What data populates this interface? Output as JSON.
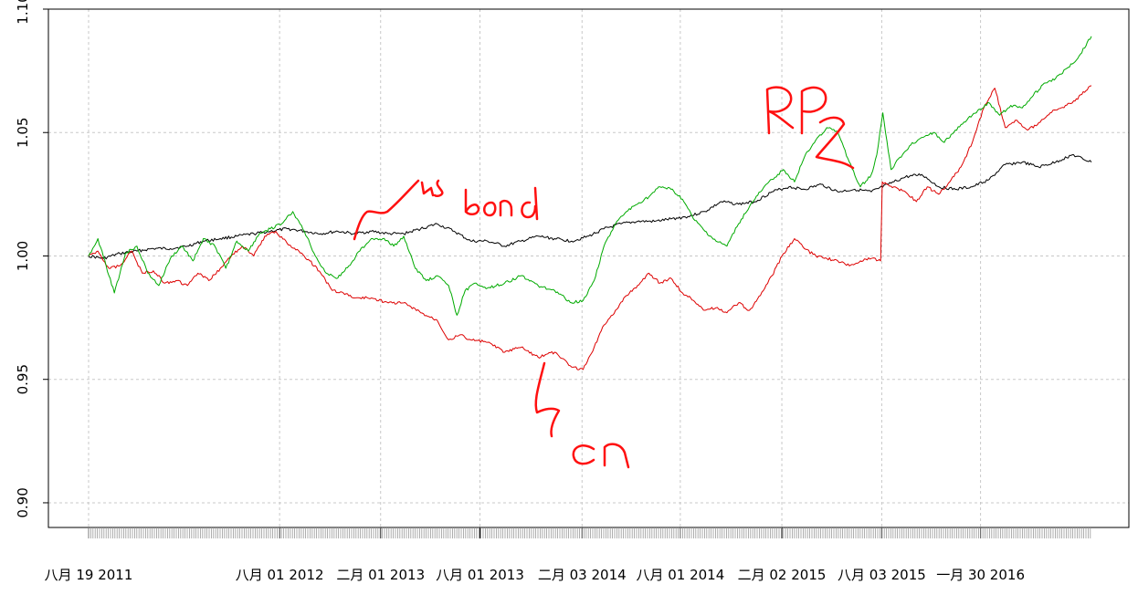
{
  "chart_data": {
    "type": "line",
    "title": "",
    "xlabel": "",
    "ylabel": "",
    "ylim": [
      0.89,
      1.1
    ],
    "grid": true,
    "y_ticks": [
      "0.90",
      "0.95",
      "1.00",
      "1.05",
      "1.10"
    ],
    "x_ticks": [
      {
        "label": "八月 19 2011",
        "date": "2011-08-19"
      },
      {
        "label": "八月 01 2012",
        "date": "2012-08-01"
      },
      {
        "label": "二月 01 2013",
        "date": "2013-02-01"
      },
      {
        "label": "八月 01 2013",
        "date": "2013-08-01"
      },
      {
        "label": "二月 03 2014",
        "date": "2014-02-03"
      },
      {
        "label": "八月 01 2014",
        "date": "2014-08-01"
      },
      {
        "label": "二月 02 2015",
        "date": "2015-02-02"
      },
      {
        "label": "八月 03 2015",
        "date": "2015-08-03"
      },
      {
        "label": "一月 30 2016",
        "date": "2016-01-30"
      }
    ],
    "x_range": [
      "2011-08-19",
      "2016-08-19"
    ],
    "series": [
      {
        "color": "#000000",
        "points": [
          [
            "2011-08-19",
            1.0
          ],
          [
            "2011-09-15",
            0.999
          ],
          [
            "2011-10-15",
            1.001
          ],
          [
            "2011-11-15",
            1.002
          ],
          [
            "2011-12-15",
            1.003
          ],
          [
            "2012-01-15",
            1.003
          ],
          [
            "2012-02-15",
            1.004
          ],
          [
            "2012-03-15",
            1.006
          ],
          [
            "2012-04-15",
            1.007
          ],
          [
            "2012-05-15",
            1.008
          ],
          [
            "2012-06-15",
            1.009
          ],
          [
            "2012-07-15",
            1.01
          ],
          [
            "2012-08-15",
            1.011
          ],
          [
            "2012-09-15",
            1.01
          ],
          [
            "2012-10-15",
            1.009
          ],
          [
            "2012-11-15",
            1.01
          ],
          [
            "2012-12-15",
            1.009
          ],
          [
            "2013-01-15",
            1.01
          ],
          [
            "2013-02-15",
            1.009
          ],
          [
            "2013-03-15",
            1.009
          ],
          [
            "2013-04-15",
            1.011
          ],
          [
            "2013-05-15",
            1.013
          ],
          [
            "2013-06-15",
            1.01
          ],
          [
            "2013-07-15",
            1.006
          ],
          [
            "2013-08-15",
            1.006
          ],
          [
            "2013-09-15",
            1.004
          ],
          [
            "2013-10-15",
            1.006
          ],
          [
            "2013-11-15",
            1.008
          ],
          [
            "2013-12-15",
            1.007
          ],
          [
            "2014-01-15",
            1.006
          ],
          [
            "2014-02-15",
            1.008
          ],
          [
            "2014-03-15",
            1.011
          ],
          [
            "2014-04-15",
            1.013
          ],
          [
            "2014-05-15",
            1.014
          ],
          [
            "2014-06-15",
            1.014
          ],
          [
            "2014-07-15",
            1.015
          ],
          [
            "2014-08-15",
            1.016
          ],
          [
            "2014-09-15",
            1.018
          ],
          [
            "2014-10-15",
            1.022
          ],
          [
            "2014-11-15",
            1.021
          ],
          [
            "2014-12-15",
            1.022
          ],
          [
            "2015-01-15",
            1.026
          ],
          [
            "2015-02-15",
            1.028
          ],
          [
            "2015-03-15",
            1.027
          ],
          [
            "2015-04-15",
            1.029
          ],
          [
            "2015-05-15",
            1.026
          ],
          [
            "2015-06-15",
            1.027
          ],
          [
            "2015-07-15",
            1.026
          ],
          [
            "2015-08-15",
            1.029
          ],
          [
            "2015-09-15",
            1.032
          ],
          [
            "2015-10-15",
            1.033
          ],
          [
            "2015-11-15",
            1.028
          ],
          [
            "2015-12-15",
            1.027
          ],
          [
            "2016-01-15",
            1.028
          ],
          [
            "2016-02-15",
            1.031
          ],
          [
            "2016-03-15",
            1.037
          ],
          [
            "2016-04-15",
            1.038
          ],
          [
            "2016-05-15",
            1.036
          ],
          [
            "2016-06-15",
            1.038
          ],
          [
            "2016-07-15",
            1.041
          ],
          [
            "2016-08-19",
            1.038
          ]
        ]
      },
      {
        "color": "#dd0000",
        "points": [
          [
            "2011-08-19",
            1.0
          ],
          [
            "2011-09-05",
            1.002
          ],
          [
            "2011-09-25",
            0.995
          ],
          [
            "2011-10-15",
            0.996
          ],
          [
            "2011-11-05",
            1.002
          ],
          [
            "2011-11-25",
            0.993
          ],
          [
            "2011-12-15",
            0.994
          ],
          [
            "2012-01-05",
            0.989
          ],
          [
            "2012-01-25",
            0.99
          ],
          [
            "2012-02-15",
            0.988
          ],
          [
            "2012-03-05",
            0.993
          ],
          [
            "2012-03-25",
            0.99
          ],
          [
            "2012-04-15",
            0.995
          ],
          [
            "2012-05-05",
            1.0
          ],
          [
            "2012-05-25",
            1.004
          ],
          [
            "2012-06-15",
            1.0
          ],
          [
            "2012-07-05",
            1.008
          ],
          [
            "2012-07-25",
            1.01
          ],
          [
            "2012-08-15",
            1.005
          ],
          [
            "2012-09-05",
            1.002
          ],
          [
            "2012-09-25",
            0.998
          ],
          [
            "2012-10-15",
            0.993
          ],
          [
            "2012-11-05",
            0.986
          ],
          [
            "2012-11-25",
            0.985
          ],
          [
            "2012-12-15",
            0.983
          ],
          [
            "2013-01-15",
            0.983
          ],
          [
            "2013-02-15",
            0.981
          ],
          [
            "2013-03-15",
            0.981
          ],
          [
            "2013-04-15",
            0.977
          ],
          [
            "2013-05-15",
            0.974
          ],
          [
            "2013-06-05",
            0.966
          ],
          [
            "2013-06-25",
            0.968
          ],
          [
            "2013-07-15",
            0.966
          ],
          [
            "2013-08-15",
            0.965
          ],
          [
            "2013-09-15",
            0.961
          ],
          [
            "2013-10-15",
            0.963
          ],
          [
            "2013-11-15",
            0.959
          ],
          [
            "2013-12-15",
            0.961
          ],
          [
            "2014-01-15",
            0.955
          ],
          [
            "2014-02-05",
            0.954
          ],
          [
            "2014-02-25",
            0.963
          ],
          [
            "2014-03-15",
            0.972
          ],
          [
            "2014-04-05",
            0.978
          ],
          [
            "2014-04-25",
            0.984
          ],
          [
            "2014-05-15",
            0.988
          ],
          [
            "2014-06-05",
            0.993
          ],
          [
            "2014-06-25",
            0.989
          ],
          [
            "2014-07-15",
            0.991
          ],
          [
            "2014-08-05",
            0.985
          ],
          [
            "2014-08-25",
            0.982
          ],
          [
            "2014-09-15",
            0.978
          ],
          [
            "2014-10-05",
            0.979
          ],
          [
            "2014-10-25",
            0.977
          ],
          [
            "2014-11-15",
            0.981
          ],
          [
            "2014-12-05",
            0.978
          ],
          [
            "2014-12-25",
            0.984
          ],
          [
            "2015-01-15",
            0.992
          ],
          [
            "2015-02-05",
            1.001
          ],
          [
            "2015-02-25",
            1.007
          ],
          [
            "2015-03-15",
            1.003
          ],
          [
            "2015-04-05",
            1.0
          ],
          [
            "2015-04-25",
            0.999
          ],
          [
            "2015-05-15",
            0.998
          ],
          [
            "2015-06-05",
            0.996
          ],
          [
            "2015-06-25",
            0.998
          ],
          [
            "2015-07-15",
            0.999
          ],
          [
            "2015-08-01",
            0.998
          ],
          [
            "2015-08-04",
            1.03
          ],
          [
            "2015-08-25",
            1.028
          ],
          [
            "2015-09-15",
            1.026
          ],
          [
            "2015-10-05",
            1.022
          ],
          [
            "2015-10-25",
            1.028
          ],
          [
            "2015-11-15",
            1.025
          ],
          [
            "2015-12-05",
            1.03
          ],
          [
            "2015-12-25",
            1.036
          ],
          [
            "2016-01-15",
            1.046
          ],
          [
            "2016-02-05",
            1.06
          ],
          [
            "2016-02-25",
            1.068
          ],
          [
            "2016-03-15",
            1.052
          ],
          [
            "2016-04-05",
            1.055
          ],
          [
            "2016-04-25",
            1.051
          ],
          [
            "2016-05-15",
            1.054
          ],
          [
            "2016-06-05",
            1.058
          ],
          [
            "2016-06-25",
            1.06
          ],
          [
            "2016-07-15",
            1.062
          ],
          [
            "2016-08-19",
            1.069
          ]
        ]
      },
      {
        "color": "#00aa00",
        "points": [
          [
            "2011-08-19",
            1.0
          ],
          [
            "2011-09-05",
            1.007
          ],
          [
            "2011-09-20",
            0.996
          ],
          [
            "2011-10-05",
            0.985
          ],
          [
            "2011-10-25",
            1.001
          ],
          [
            "2011-11-15",
            1.004
          ],
          [
            "2011-12-05",
            0.993
          ],
          [
            "2011-12-25",
            0.988
          ],
          [
            "2012-01-15",
            0.999
          ],
          [
            "2012-02-05",
            1.004
          ],
          [
            "2012-02-25",
            0.998
          ],
          [
            "2012-03-15",
            1.007
          ],
          [
            "2012-04-05",
            1.004
          ],
          [
            "2012-04-25",
            0.995
          ],
          [
            "2012-05-15",
            1.006
          ],
          [
            "2012-06-05",
            1.002
          ],
          [
            "2012-06-25",
            1.009
          ],
          [
            "2012-07-15",
            1.011
          ],
          [
            "2012-08-05",
            1.013
          ],
          [
            "2012-08-25",
            1.018
          ],
          [
            "2012-09-15",
            1.01
          ],
          [
            "2012-10-05",
            1.0
          ],
          [
            "2012-10-25",
            0.993
          ],
          [
            "2012-11-15",
            0.991
          ],
          [
            "2012-12-05",
            0.996
          ],
          [
            "2012-12-25",
            1.002
          ],
          [
            "2013-01-15",
            1.007
          ],
          [
            "2013-02-05",
            1.007
          ],
          [
            "2013-02-25",
            1.004
          ],
          [
            "2013-03-15",
            1.008
          ],
          [
            "2013-04-05",
            0.995
          ],
          [
            "2013-04-25",
            0.99
          ],
          [
            "2013-05-15",
            0.992
          ],
          [
            "2013-06-05",
            0.988
          ],
          [
            "2013-06-20",
            0.976
          ],
          [
            "2013-07-05",
            0.986
          ],
          [
            "2013-07-25",
            0.989
          ],
          [
            "2013-08-15",
            0.987
          ],
          [
            "2013-09-15",
            0.989
          ],
          [
            "2013-10-15",
            0.992
          ],
          [
            "2013-11-15",
            0.988
          ],
          [
            "2013-12-15",
            0.986
          ],
          [
            "2014-01-15",
            0.981
          ],
          [
            "2014-02-05",
            0.982
          ],
          [
            "2014-02-25",
            0.99
          ],
          [
            "2014-03-15",
            1.004
          ],
          [
            "2014-04-05",
            1.013
          ],
          [
            "2014-04-25",
            1.018
          ],
          [
            "2014-05-15",
            1.021
          ],
          [
            "2014-06-05",
            1.024
          ],
          [
            "2014-06-25",
            1.028
          ],
          [
            "2014-07-15",
            1.027
          ],
          [
            "2014-08-05",
            1.023
          ],
          [
            "2014-08-25",
            1.015
          ],
          [
            "2014-09-15",
            1.01
          ],
          [
            "2014-10-05",
            1.006
          ],
          [
            "2014-10-25",
            1.004
          ],
          [
            "2014-11-15",
            1.013
          ],
          [
            "2014-12-05",
            1.02
          ],
          [
            "2014-12-25",
            1.026
          ],
          [
            "2015-01-15",
            1.031
          ],
          [
            "2015-02-05",
            1.035
          ],
          [
            "2015-02-25",
            1.03
          ],
          [
            "2015-03-15",
            1.04
          ],
          [
            "2015-04-05",
            1.047
          ],
          [
            "2015-04-25",
            1.052
          ],
          [
            "2015-05-15",
            1.05
          ],
          [
            "2015-06-05",
            1.038
          ],
          [
            "2015-06-25",
            1.028
          ],
          [
            "2015-07-15",
            1.033
          ],
          [
            "2015-07-25",
            1.041
          ],
          [
            "2015-08-05",
            1.058
          ],
          [
            "2015-08-20",
            1.035
          ],
          [
            "2015-09-05",
            1.04
          ],
          [
            "2015-09-25",
            1.045
          ],
          [
            "2015-10-15",
            1.048
          ],
          [
            "2015-11-05",
            1.05
          ],
          [
            "2015-11-25",
            1.046
          ],
          [
            "2015-12-15",
            1.051
          ],
          [
            "2016-01-05",
            1.055
          ],
          [
            "2016-01-25",
            1.059
          ],
          [
            "2016-02-15",
            1.062
          ],
          [
            "2016-03-05",
            1.057
          ],
          [
            "2016-03-25",
            1.061
          ],
          [
            "2016-04-15",
            1.06
          ],
          [
            "2016-05-05",
            1.065
          ],
          [
            "2016-05-25",
            1.07
          ],
          [
            "2016-06-15",
            1.072
          ],
          [
            "2016-07-05",
            1.076
          ],
          [
            "2016-07-25",
            1.08
          ],
          [
            "2016-08-19",
            1.089
          ]
        ]
      }
    ],
    "annotations": [
      {
        "text": "us bond",
        "color": "#ff0000",
        "style": "handwritten"
      },
      {
        "text": "cn",
        "color": "#ff0000",
        "style": "handwritten"
      },
      {
        "text": "RP",
        "color": "#ff0000",
        "style": "handwritten"
      }
    ]
  }
}
